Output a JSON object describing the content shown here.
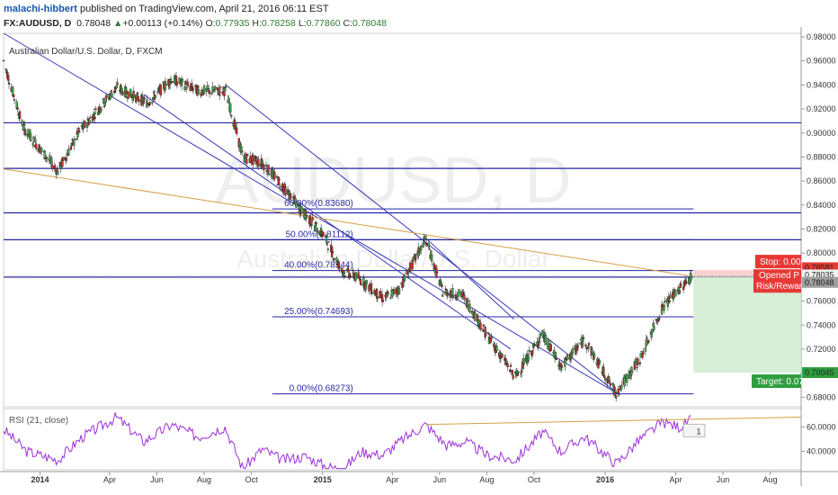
{
  "header": {
    "user": "malachi-hibbert",
    "published": " published on TradingView.com, April 21, 2016 06:11 EST",
    "symbol": "FX:AUDUSD, D",
    "last": "0.78048",
    "change_arrow": "▲",
    "change": "+0.00113 (+0.14%)",
    "o_label": "O:",
    "o_val": "0.77935",
    "h_label": "H:",
    "h_val": "0.78258",
    "l_label": "L:",
    "l_val": "0.77860",
    "c_label": "C:",
    "c_val": "0.78048"
  },
  "chart_data": [
    {
      "type": "candlestick",
      "title": "Australian Dollar/U.S. Dollar, D, FXCM",
      "watermark": "AUDUSD, D",
      "watermark_sub": "Australian Dollar/U.S. Dollar",
      "ylim": [
        0.672,
        0.983
      ],
      "y_ticks": [
        0.68,
        0.7,
        0.72,
        0.74,
        0.76,
        0.78,
        0.8,
        0.82,
        0.84,
        0.86,
        0.88,
        0.9,
        0.92,
        0.94,
        0.96,
        0.98
      ],
      "y_tick_labels": [
        "0.68000",
        "0.70000",
        "0.72000",
        "0.74000",
        "0.76000",
        "0.78000",
        "0.80000",
        "0.82000",
        "0.84000",
        "0.86000",
        "0.88000",
        "0.90000",
        "0.92000",
        "0.94000",
        "0.96000",
        "0.98000"
      ],
      "x_range": [
        "2013-11-15",
        "2016-09-10"
      ],
      "x_ticks": [
        "2014-01-01",
        "2014-04-01",
        "2014-06-01",
        "2014-08-01",
        "2014-10-01",
        "2015-01-01",
        "2015-04-01",
        "2015-06-01",
        "2015-08-01",
        "2015-10-01",
        "2016-01-01",
        "2016-04-01",
        "2016-06-01",
        "2016-08-01"
      ],
      "x_tick_labels": [
        "2014",
        "Apr",
        "Jun",
        "Aug",
        "Oct",
        "2015",
        "Apr",
        "Jun",
        "Aug",
        "Oct",
        "2016",
        "Apr",
        "Jun",
        "Aug"
      ],
      "price_path": [
        [
          "2013-11-15",
          0.96
        ],
        [
          "2013-12-10",
          0.905
        ],
        [
          "2014-01-24",
          0.868
        ],
        [
          "2014-02-20",
          0.9
        ],
        [
          "2014-04-10",
          0.938
        ],
        [
          "2014-05-20",
          0.925
        ],
        [
          "2014-06-20",
          0.945
        ],
        [
          "2014-07-25",
          0.935
        ],
        [
          "2014-08-15",
          0.935
        ],
        [
          "2014-08-29",
          0.935
        ],
        [
          "2014-09-20",
          0.88
        ],
        [
          "2014-10-15",
          0.875
        ],
        [
          "2014-11-05",
          0.86
        ],
        [
          "2014-12-05",
          0.835
        ],
        [
          "2015-01-02",
          0.815
        ],
        [
          "2015-01-26",
          0.785
        ],
        [
          "2015-02-15",
          0.78
        ],
        [
          "2015-03-20",
          0.762
        ],
        [
          "2015-04-10",
          0.77
        ],
        [
          "2015-05-14",
          0.812
        ],
        [
          "2015-06-05",
          0.768
        ],
        [
          "2015-07-01",
          0.765
        ],
        [
          "2015-08-01",
          0.732
        ],
        [
          "2015-09-07",
          0.697
        ],
        [
          "2015-10-12",
          0.732
        ],
        [
          "2015-11-05",
          0.705
        ],
        [
          "2015-12-05",
          0.728
        ],
        [
          "2016-01-15",
          0.683
        ],
        [
          "2016-02-15",
          0.712
        ],
        [
          "2016-03-15",
          0.755
        ],
        [
          "2016-04-21",
          0.7805
        ]
      ],
      "horizontal_levels": [
        0.9085,
        0.8705,
        0.8335,
        0.8111,
        0.78
      ],
      "fibonacci": [
        {
          "label": "60.00%(0.83680)",
          "value": 0.8368
        },
        {
          "label": "50.00%(0.81112)",
          "value": 0.81112
        },
        {
          "label": "40.00%(0.78544)",
          "value": 0.78544
        },
        {
          "label": "25.00%(0.74693)",
          "value": 0.74693
        },
        {
          "label": "0.00%(0.68273)",
          "value": 0.68273
        }
      ],
      "trendlines": [
        {
          "from": [
            "2013-11-15",
            0.983
          ],
          "to": [
            "2016-01-17",
            0.683
          ],
          "color": "#3a3ab8"
        },
        {
          "from": [
            "2014-08-29",
            0.94
          ],
          "to": [
            "2016-01-17",
            0.683
          ],
          "color": "#3a3ab8"
        },
        {
          "from": [
            "2014-05-15",
            0.932
          ],
          "to": [
            "2015-09-01",
            0.72
          ],
          "color": "#3a3ab8"
        },
        {
          "from": [
            "2015-05-15",
            0.812
          ],
          "to": [
            "2015-09-05",
            0.745
          ],
          "color": "#3a3ab8"
        },
        {
          "from": [
            "2013-11-15",
            0.87
          ],
          "to": [
            "2016-04-24",
            0.7805
          ],
          "color": "#d4a044"
        }
      ],
      "position": {
        "start": "2016-04-24",
        "end": "2016-09-10",
        "entry": 0.78048,
        "stop": 0.78581,
        "target": 0.70045,
        "entry_price_label": "0.78048",
        "stop_price_label": "0.78581",
        "target_price_label": "0.70045",
        "extra_price_label": "0.78035",
        "stop_text": "Stop: 0.00",
        "opened_text": "Opened P",
        "rr_text": "Risk/Reward",
        "target_text": "Target: 0.07"
      }
    },
    {
      "type": "line",
      "title": "RSI (21, close)",
      "ylim": [
        25,
        75
      ],
      "y_ticks": [
        40,
        60
      ],
      "y_tick_labels": [
        "40.0000",
        "60.0000"
      ],
      "rsi_path": [
        [
          "2013-11-15",
          58
        ],
        [
          "2013-12-15",
          40
        ],
        [
          "2014-01-24",
          33
        ],
        [
          "2014-02-25",
          52
        ],
        [
          "2014-04-10",
          68
        ],
        [
          "2014-05-15",
          48
        ],
        [
          "2014-06-20",
          62
        ],
        [
          "2014-07-25",
          52
        ],
        [
          "2014-08-28",
          60
        ],
        [
          "2014-09-20",
          26
        ],
        [
          "2014-10-15",
          42
        ],
        [
          "2014-11-10",
          33
        ],
        [
          "2014-12-10",
          36
        ],
        [
          "2015-01-05",
          28
        ],
        [
          "2015-01-27",
          25
        ],
        [
          "2015-02-20",
          40
        ],
        [
          "2015-03-20",
          37
        ],
        [
          "2015-04-15",
          50
        ],
        [
          "2015-05-14",
          62
        ],
        [
          "2015-06-10",
          45
        ],
        [
          "2015-07-05",
          48
        ],
        [
          "2015-08-01",
          37
        ],
        [
          "2015-09-07",
          33
        ],
        [
          "2015-10-12",
          56
        ],
        [
          "2015-11-05",
          40
        ],
        [
          "2015-12-05",
          52
        ],
        [
          "2016-01-15",
          30
        ],
        [
          "2016-02-15",
          50
        ],
        [
          "2016-03-15",
          64
        ],
        [
          "2016-04-06",
          60
        ],
        [
          "2016-04-21",
          66
        ]
      ],
      "trendline": {
        "from": [
          "2015-05-14",
          62
        ],
        "to": [
          "2016-09-10",
          68
        ]
      },
      "badge_text": "1"
    }
  ],
  "colors": {
    "up_candle": "#4caf50",
    "down_candle": "#c0392b",
    "level_line": "#2424a8",
    "trend_orange": "#d4a044",
    "rsi_line": "#9b30d9",
    "stop_tag": "#e53935",
    "target_tag": "#2e9e3e",
    "price_tag": "#9e9e9e"
  }
}
